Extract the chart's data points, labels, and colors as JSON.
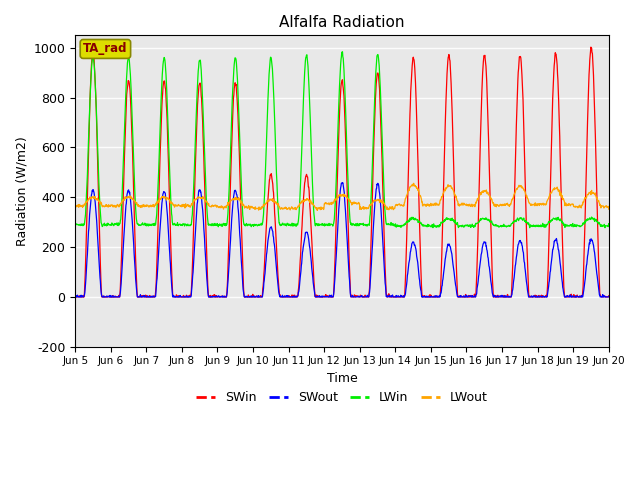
{
  "title": "Alfalfa Radiation",
  "xlabel": "Time",
  "ylabel": "Radiation (W/m2)",
  "ylim": [
    -200,
    1050
  ],
  "yticks": [
    -200,
    0,
    200,
    400,
    600,
    800,
    1000
  ],
  "n_days": 15,
  "colors": {
    "SWin": "#ff0000",
    "SWout": "#0000ff",
    "LWin": "#00ee00",
    "LWout": "#ffa500"
  },
  "plot_bg": "#e8e8e8",
  "ta_rad_box_facecolor": "#dddd00",
  "ta_rad_box_edgecolor": "#888800",
  "ta_rad_text_color": "#880000",
  "xtick_labels": [
    "Jun 5",
    "Jun 6",
    "Jun 7",
    "Jun 8",
    "Jun 9",
    "Jun 10",
    "Jun 11",
    "Jun 12",
    "Jun 13",
    "Jun 14",
    "Jun 15",
    "Jun 16",
    "Jun 17",
    "Jun 18",
    "Jun 19",
    "Jun 20"
  ],
  "SWin_peaks": [
    980,
    870,
    870,
    860,
    860,
    490,
    490,
    870,
    900,
    960,
    970,
    970,
    970,
    980,
    1000
  ],
  "SWout_peaks": [
    430,
    430,
    425,
    430,
    430,
    280,
    260,
    460,
    455,
    220,
    210,
    220,
    225,
    230,
    230
  ],
  "LWin_day_peaks": [
    960,
    960,
    960,
    950,
    960,
    960,
    970,
    980,
    975,
    0,
    0,
    0,
    0,
    0,
    0
  ],
  "LWin_night_base": 290,
  "LWin_late_base": 290,
  "LWin_late_amplitude": 25,
  "LWout_base": [
    370,
    370,
    370,
    370,
    365,
    360,
    360,
    380,
    360,
    380,
    380,
    375,
    380,
    380,
    370
  ],
  "LWout_amplitude": [
    30,
    30,
    30,
    30,
    30,
    30,
    30,
    30,
    30,
    70,
    65,
    50,
    65,
    55,
    50
  ]
}
